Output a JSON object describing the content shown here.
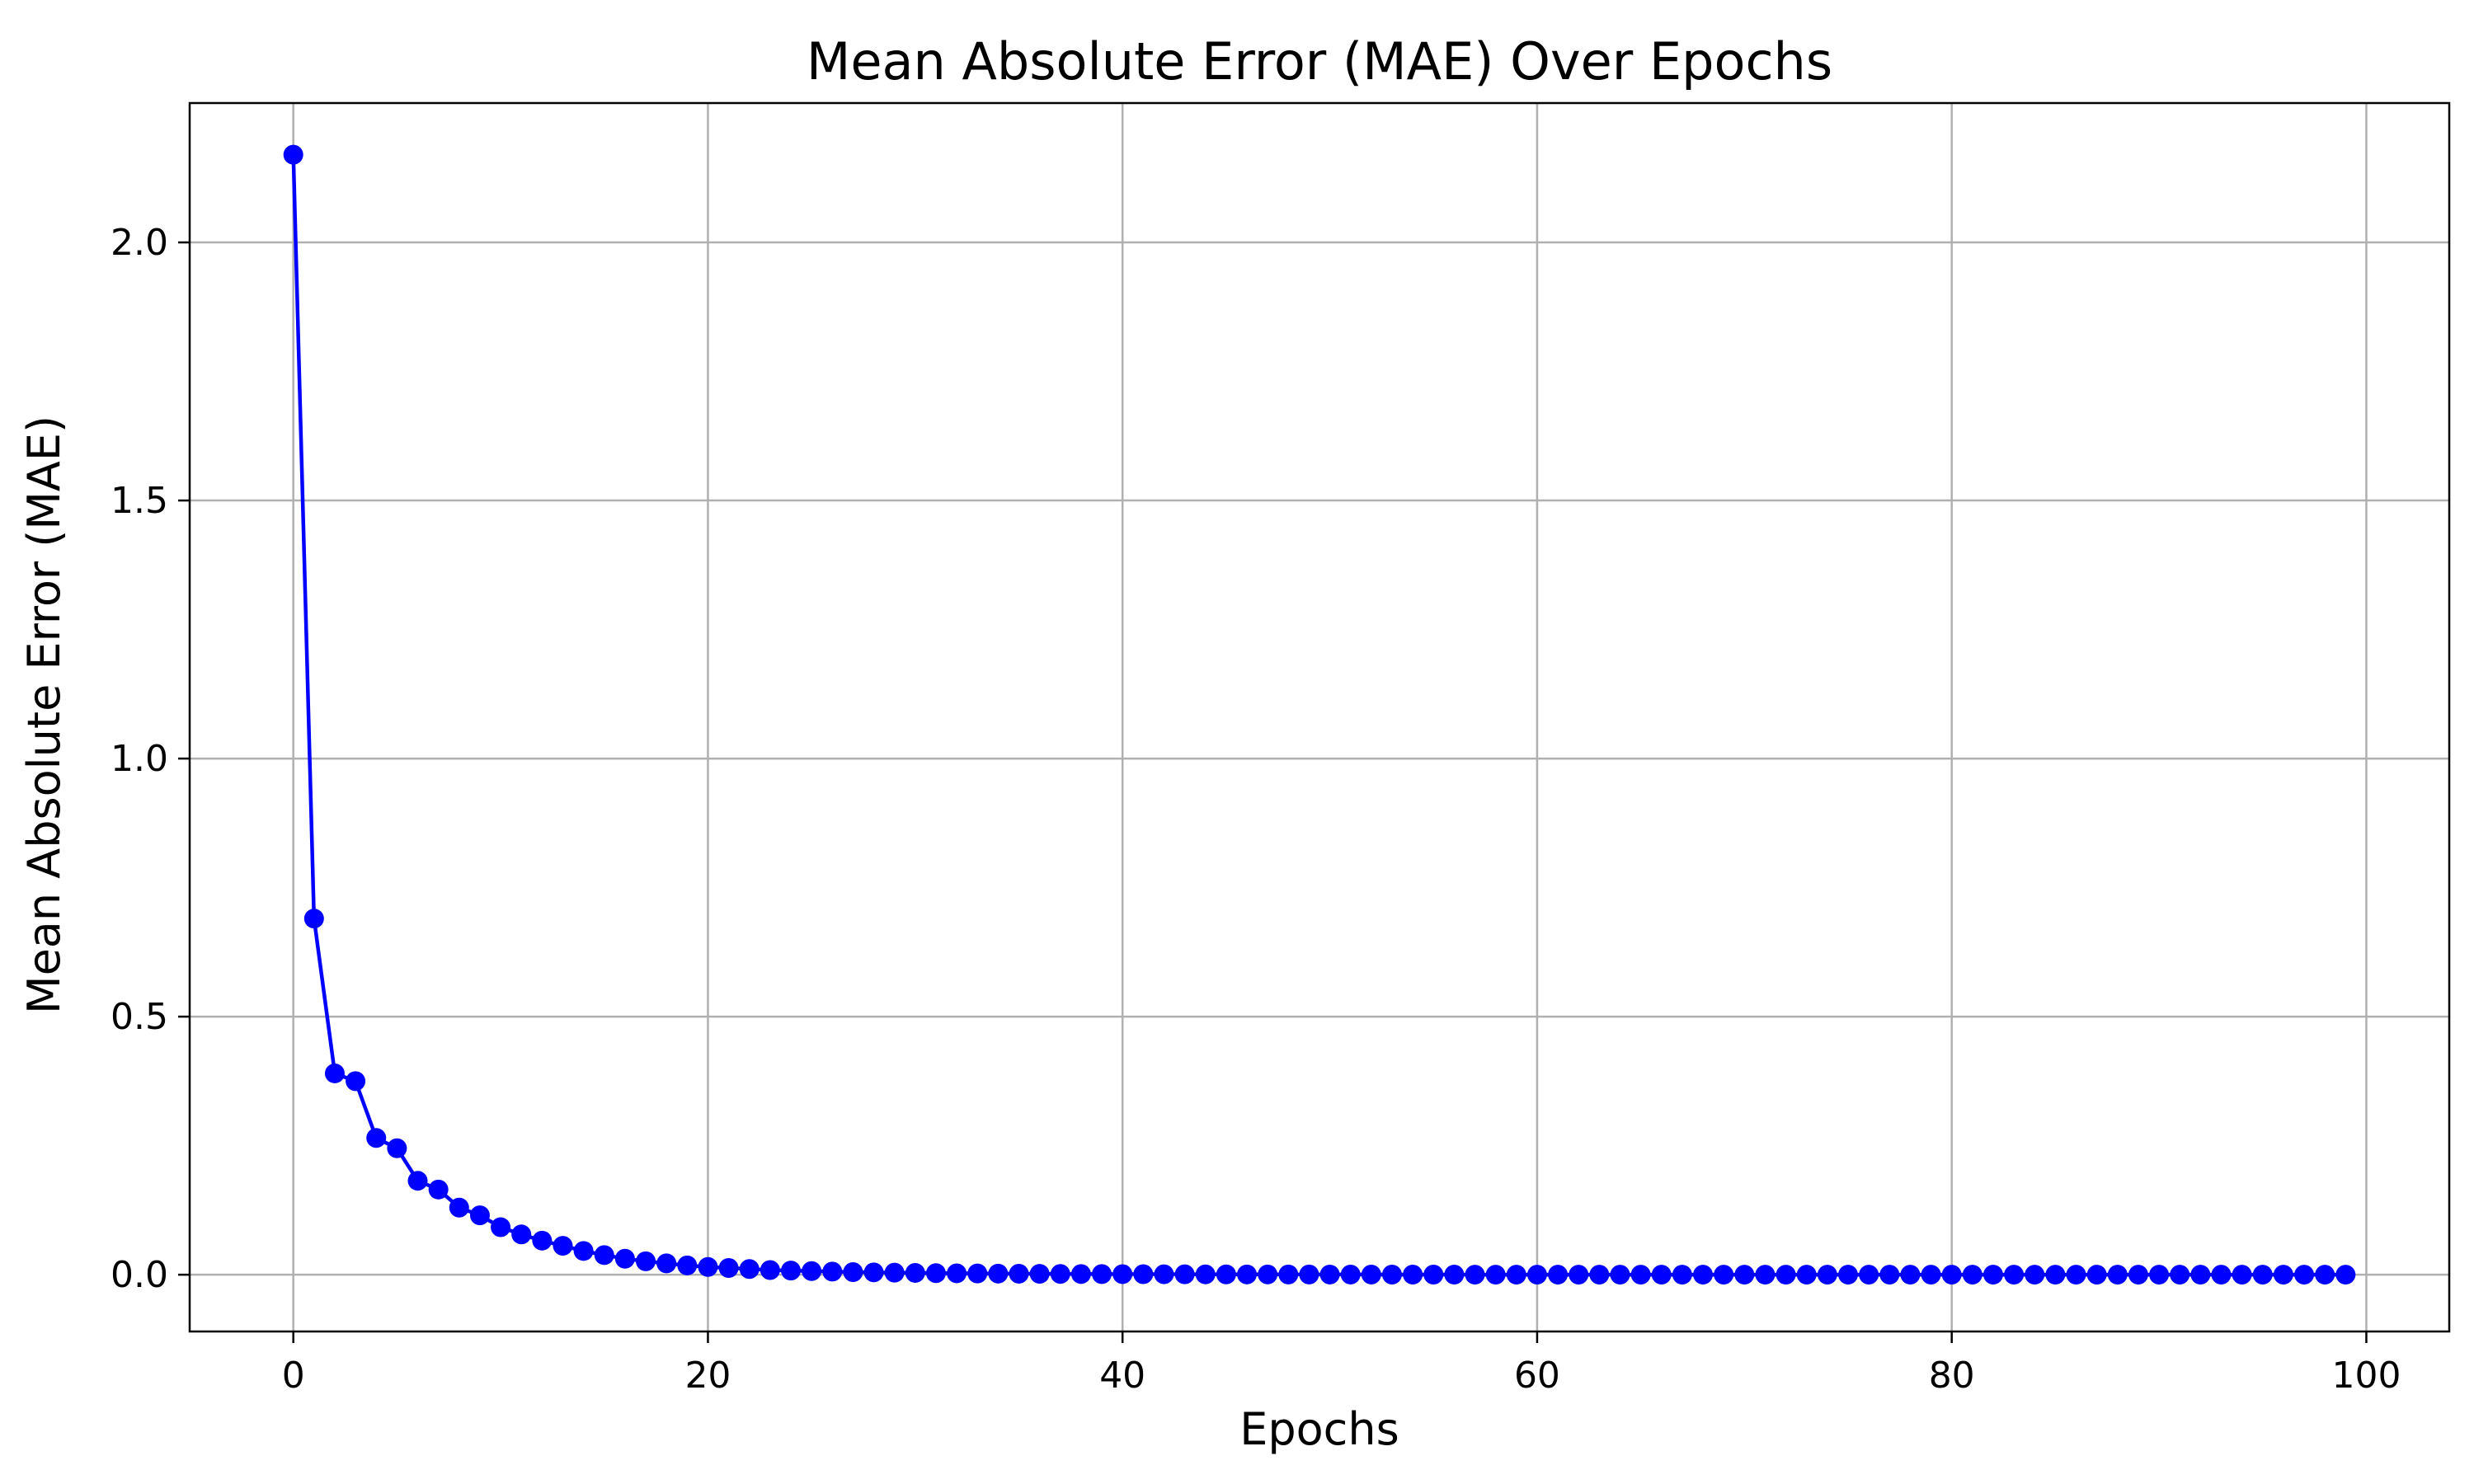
{
  "chart_data": {
    "type": "line",
    "title": "Mean Absolute Error (MAE) Over Epochs",
    "xlabel": "Epochs",
    "ylabel": "Mean Absolute Error (MAE)",
    "xlim": [
      -5,
      104
    ],
    "ylim": [
      -0.11,
      2.27
    ],
    "xticks": [
      0,
      20,
      40,
      60,
      80,
      100
    ],
    "xtick_labels": [
      "0",
      "20",
      "40",
      "60",
      "80",
      "100"
    ],
    "yticks": [
      0.0,
      0.5,
      1.0,
      1.5,
      2.0
    ],
    "ytick_labels": [
      "0.0",
      "0.5",
      "1.0",
      "1.5",
      "2.0"
    ],
    "grid": true,
    "legend": "none",
    "series": [
      {
        "color": "#0000ff",
        "marker": "circle",
        "x": [
          0,
          1,
          2,
          3,
          4,
          5,
          6,
          7,
          8,
          9,
          10,
          11,
          12,
          13,
          14,
          15,
          16,
          17,
          18,
          19,
          20,
          21,
          22,
          23,
          24,
          25,
          26,
          27,
          28,
          29,
          30,
          31,
          32,
          33,
          34,
          35,
          36,
          37,
          38,
          39,
          40,
          41,
          42,
          43,
          44,
          45,
          46,
          47,
          48,
          49,
          50,
          51,
          52,
          53,
          54,
          55,
          56,
          57,
          58,
          59,
          60,
          61,
          62,
          63,
          64,
          65,
          66,
          67,
          68,
          69,
          70,
          71,
          72,
          73,
          74,
          75,
          76,
          77,
          78,
          79,
          80,
          81,
          82,
          83,
          84,
          85,
          86,
          87,
          88,
          89,
          90,
          91,
          92,
          93,
          94,
          95,
          96,
          97,
          98,
          99
        ],
        "values": [
          2.17,
          0.69,
          0.39,
          0.375,
          0.265,
          0.245,
          0.182,
          0.165,
          0.13,
          0.115,
          0.092,
          0.078,
          0.066,
          0.056,
          0.046,
          0.038,
          0.031,
          0.026,
          0.022,
          0.018,
          0.015,
          0.013,
          0.011,
          0.009,
          0.008,
          0.007,
          0.006,
          0.005,
          0.0045,
          0.004,
          0.0035,
          0.003,
          0.0027,
          0.0024,
          0.0021,
          0.0019,
          0.0017,
          0.0015,
          0.0013,
          0.0012,
          0.0011,
          0.001,
          0.0009,
          0.0008,
          0.0007,
          0.0006,
          0.0005,
          0.0005,
          0.0004,
          0.0004,
          0.0003,
          0.0003,
          0.0003,
          0.0002,
          0.0002,
          0.0002,
          0.0002,
          0.0001,
          0.0001,
          0.0001,
          0.0001,
          0.0001,
          0.0001,
          0.0001,
          0.0001,
          0.0001,
          0.0001,
          0.0001,
          0.0001,
          0.0001,
          0.0001,
          0.0001,
          0.0001,
          0.0001,
          0.0001,
          0.0001,
          0.0001,
          0.0001,
          0.0001,
          0.0001,
          0.0001,
          0.0001,
          0.0001,
          0.0001,
          0.0001,
          0.0001,
          0.0001,
          0.0001,
          0.0001,
          0.0001,
          0.0001,
          0.0001,
          0.0001,
          0.0001,
          0.0001,
          0.0001,
          0.0001,
          0.0001,
          0.0001,
          0.0001
        ]
      }
    ]
  }
}
